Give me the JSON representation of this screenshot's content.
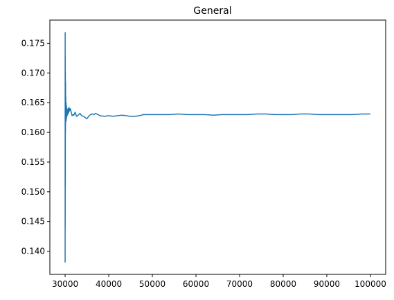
{
  "chart_data": {
    "type": "line",
    "title": "General",
    "xlabel": "",
    "ylabel": "",
    "xlim": [
      26500,
      103500
    ],
    "ylim": [
      0.1361,
      0.1789
    ],
    "grid": false,
    "legend": "none",
    "x_ticks": [
      30000,
      40000,
      50000,
      60000,
      70000,
      80000,
      90000,
      100000
    ],
    "x_tick_labels": [
      "30000",
      "40000",
      "50000",
      "60000",
      "70000",
      "80000",
      "90000",
      "100000"
    ],
    "y_ticks": [
      0.14,
      0.145,
      0.15,
      0.155,
      0.16,
      0.165,
      0.17,
      0.175
    ],
    "y_tick_labels": [
      "0.140",
      "0.145",
      "0.150",
      "0.155",
      "0.160",
      "0.165",
      "0.170",
      "0.175"
    ],
    "series": [
      {
        "color": "#1f77b4",
        "x": [
          30000,
          30010,
          30020,
          30030,
          30045,
          30060,
          30080,
          30100,
          30120,
          30150,
          30180,
          30220,
          30260,
          30300,
          30350,
          30400,
          30450,
          30500,
          30600,
          30700,
          30800,
          30900,
          31000,
          31200,
          31400,
          31600,
          31800,
          32000,
          32300,
          32600,
          33000,
          33400,
          33800,
          34200,
          34600,
          35000,
          35400,
          35800,
          36200,
          36600,
          37000,
          37500,
          38000,
          39000,
          40000,
          41000,
          42000,
          43000,
          44000,
          45000,
          46000,
          47000,
          48000,
          49000,
          50000,
          52000,
          54000,
          56000,
          58000,
          60000,
          62000,
          64000,
          66000,
          68000,
          70000,
          72000,
          74000,
          76000,
          78000,
          80000,
          82000,
          84000,
          86000,
          88000,
          90000,
          92000,
          94000,
          96000,
          98000,
          100000
        ],
        "y": [
          0.1381,
          0.1768,
          0.144,
          0.173,
          0.151,
          0.17,
          0.16,
          0.1685,
          0.1615,
          0.166,
          0.1625,
          0.165,
          0.162,
          0.1645,
          0.1625,
          0.164,
          0.1628,
          0.1638,
          0.163,
          0.164,
          0.1633,
          0.1642,
          0.1636,
          0.164,
          0.1634,
          0.1628,
          0.163,
          0.1629,
          0.1634,
          0.1627,
          0.1629,
          0.1632,
          0.1628,
          0.1627,
          0.1625,
          0.1623,
          0.1627,
          0.163,
          0.1631,
          0.163,
          0.1632,
          0.163,
          0.1628,
          0.1627,
          0.1628,
          0.1627,
          0.1628,
          0.1629,
          0.1628,
          0.1627,
          0.1627,
          0.1628,
          0.163,
          0.163,
          0.163,
          0.163,
          0.163,
          0.1631,
          0.163,
          0.163,
          0.163,
          0.1629,
          0.163,
          0.163,
          0.163,
          0.163,
          0.1631,
          0.1631,
          0.163,
          0.163,
          0.163,
          0.1631,
          0.1631,
          0.163,
          0.163,
          0.163,
          0.163,
          0.163,
          0.1631,
          0.1631
        ]
      }
    ]
  }
}
